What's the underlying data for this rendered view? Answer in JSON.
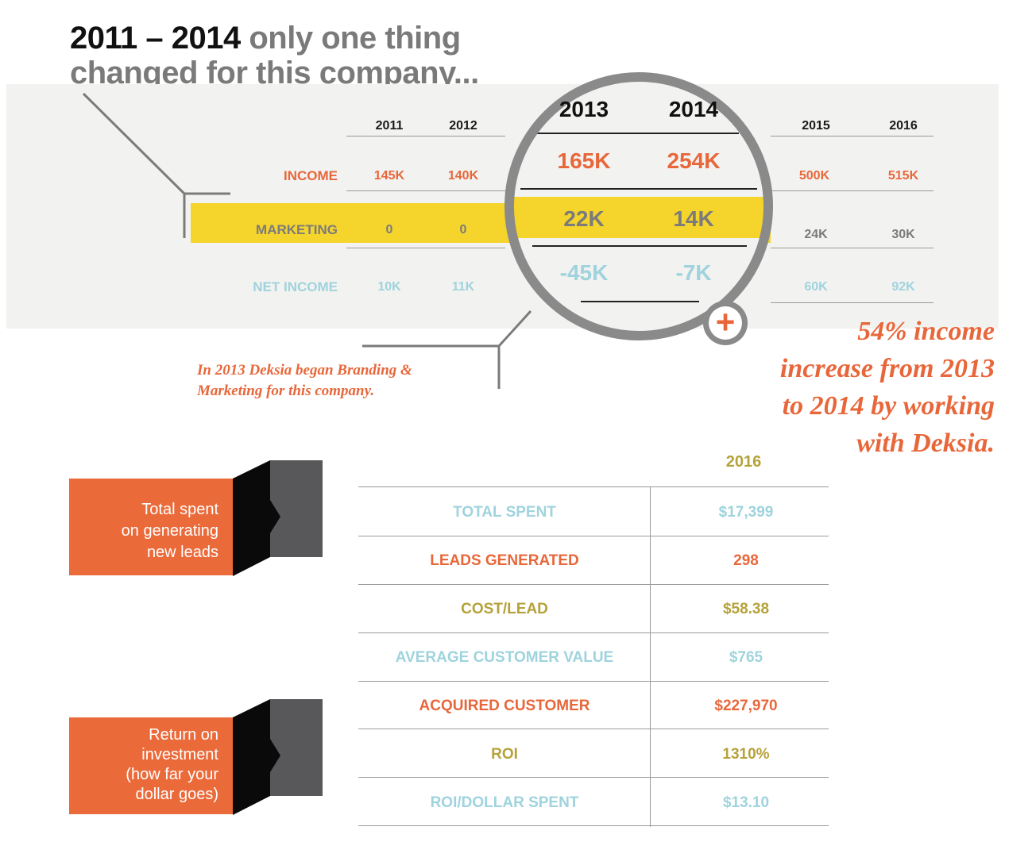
{
  "title": {
    "years": "2011 – 2014",
    "rest_line1": " only one thing",
    "line2": "changed for this company..."
  },
  "top_table": {
    "years": [
      "2011",
      "2012",
      "2013",
      "2014",
      "2015",
      "2016"
    ],
    "income_label": "INCOME",
    "marketing_label": "MARKETING",
    "net_income_label": "NET INCOME",
    "income": [
      "145K",
      "140K",
      "165K",
      "254K",
      "500K",
      "515K"
    ],
    "marketing": [
      "0",
      "0",
      "22K",
      "14K",
      "24K",
      "30K"
    ],
    "net_income": [
      "10K",
      "11K",
      "-45K",
      "-7K",
      "60K",
      "92K"
    ]
  },
  "note_left": {
    "line1": "In 2013 Deksia began Branding &",
    "line2": "Marketing for this company."
  },
  "note_right": {
    "line1": "54% income",
    "line2": "increase from 2013",
    "line3": "to 2014 by working",
    "line4": "with Deksia."
  },
  "plus_symbol": "+",
  "colors": {
    "orange": "#e8673a",
    "yellow": "#f5d42c",
    "light_blue": "#9fd3dd",
    "olive": "#b5a23a",
    "gray": "#7b7b7b"
  },
  "icons": {
    "magnifier": "magnifying-glass-icon",
    "plus": "plus-icon",
    "arrow": "arrow-icon"
  },
  "callouts": [
    {
      "lines": [
        "Total spent",
        "on generating",
        "new leads"
      ]
    },
    {
      "lines": [
        "Return on",
        "investment",
        "(how far your",
        "dollar goes)"
      ]
    }
  ],
  "bottom_table": {
    "year": "2016",
    "rows": [
      {
        "label": "TOTAL SPENT",
        "value": "$17,399"
      },
      {
        "label": "LEADS GENERATED",
        "value": "298"
      },
      {
        "label": "COST/LEAD",
        "value": "$58.38"
      },
      {
        "label": "AVERAGE CUSTOMER VALUE",
        "value": "$765"
      },
      {
        "label": "ACQUIRED CUSTOMER",
        "value": "$227,970"
      },
      {
        "label": "ROI",
        "value": "1310%"
      },
      {
        "label": "ROI/DOLLAR SPENT",
        "value": "$13.10"
      }
    ]
  }
}
